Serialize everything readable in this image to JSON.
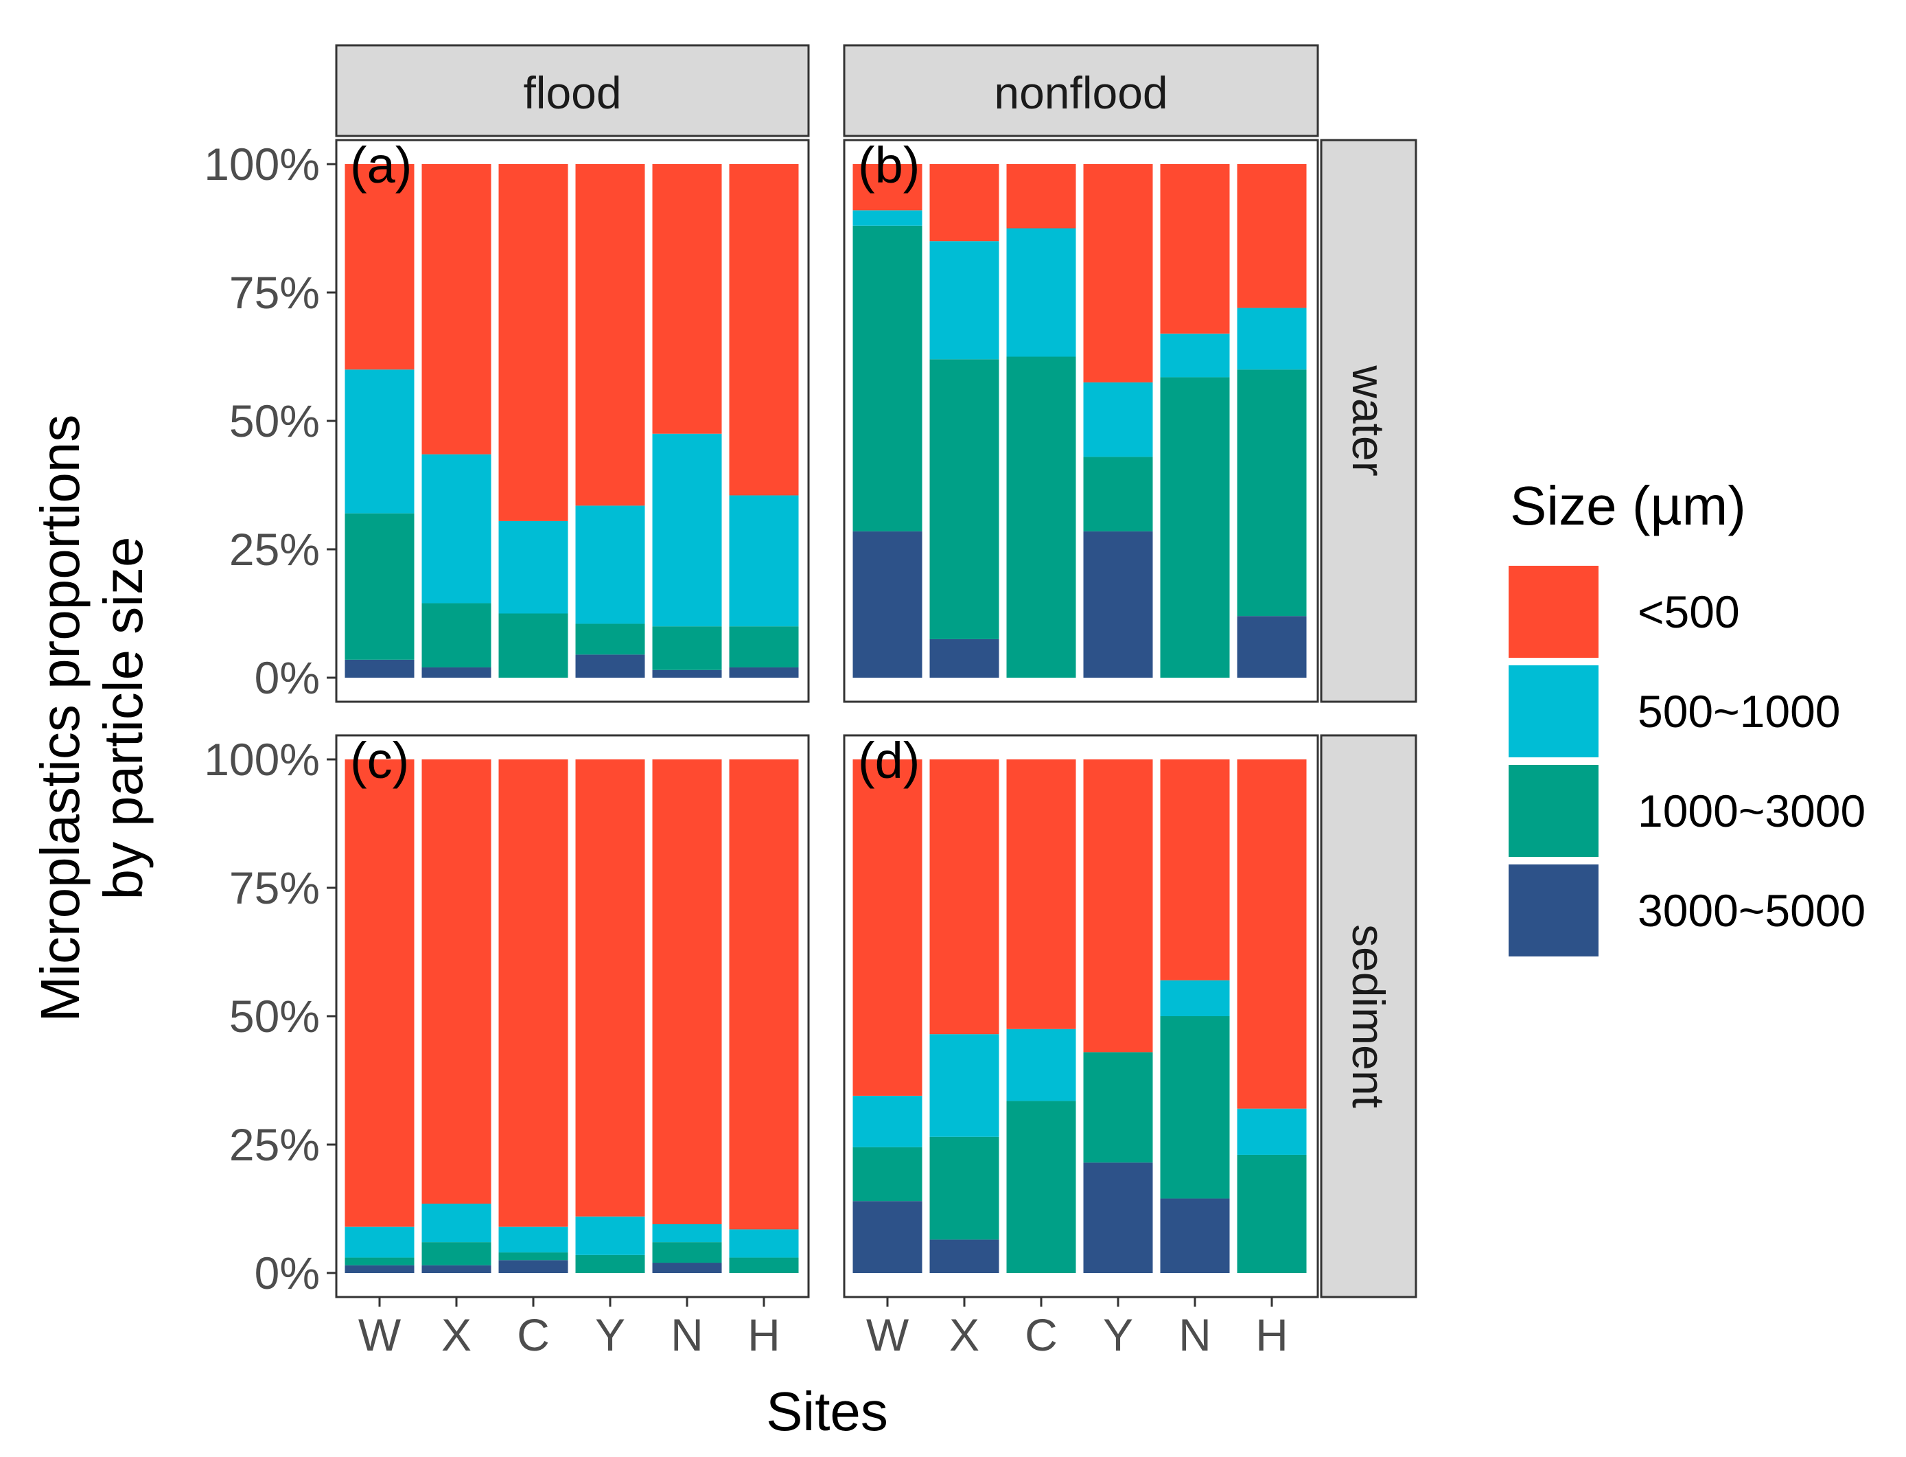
{
  "chart_data": {
    "type": "bar",
    "stacked": true,
    "layout": "2x2 facet grid",
    "col_facets": [
      "flood",
      "nonflood"
    ],
    "row_facets": [
      "water",
      "sediment"
    ],
    "categories": [
      "W",
      "X",
      "C",
      "Y",
      "N",
      "H"
    ],
    "xlabel": "Sites",
    "ylabel_lines": [
      "Microplastics proportions",
      "by particle size"
    ],
    "ylim": [
      0,
      100
    ],
    "yticks": [
      0,
      25,
      50,
      75,
      100
    ],
    "ytick_labels": [
      "0%",
      "25%",
      "50%",
      "75%",
      "100%"
    ],
    "legend": {
      "title": "Size (µm)",
      "position": "right",
      "entries": [
        {
          "label": "<500",
          "color": "#FF4A30"
        },
        {
          "label": "500~1000",
          "color": "#00BDD5"
        },
        {
          "label": "1000~3000",
          "color": "#00A087"
        },
        {
          "label": "3000~5000",
          "color": "#2D5289"
        }
      ]
    },
    "stack_order_bottom_to_top": [
      "3000~5000",
      "1000~3000",
      "500~1000",
      "<500"
    ],
    "panels": [
      {
        "tag": "(a)",
        "col": "flood",
        "row": "water",
        "series": [
          {
            "name": "3000~5000",
            "values": [
              3.5,
              2.0,
              0.0,
              4.5,
              1.5,
              2.0
            ]
          },
          {
            "name": "1000~3000",
            "values": [
              28.5,
              12.5,
              12.5,
              6.0,
              8.5,
              8.0
            ]
          },
          {
            "name": "500~1000",
            "values": [
              28.0,
              29.0,
              18.0,
              23.0,
              37.5,
              25.5
            ]
          },
          {
            "name": "<500",
            "values": [
              40.0,
              56.5,
              69.5,
              66.5,
              52.5,
              64.5
            ]
          }
        ]
      },
      {
        "tag": "(b)",
        "col": "nonflood",
        "row": "water",
        "series": [
          {
            "name": "3000~5000",
            "values": [
              28.5,
              7.5,
              0.0,
              28.5,
              0.0,
              12.0
            ]
          },
          {
            "name": "1000~3000",
            "values": [
              59.5,
              54.5,
              62.5,
              14.5,
              58.5,
              48.0
            ]
          },
          {
            "name": "500~1000",
            "values": [
              3.0,
              23.0,
              25.0,
              14.5,
              8.5,
              12.0
            ]
          },
          {
            "name": "<500",
            "values": [
              9.0,
              15.0,
              12.5,
              42.5,
              33.0,
              28.0
            ]
          }
        ]
      },
      {
        "tag": "(c)",
        "col": "flood",
        "row": "sediment",
        "series": [
          {
            "name": "3000~5000",
            "values": [
              1.5,
              1.5,
              2.5,
              0.0,
              2.0,
              0.0
            ]
          },
          {
            "name": "1000~3000",
            "values": [
              1.5,
              4.5,
              1.5,
              3.5,
              4.0,
              3.0
            ]
          },
          {
            "name": "500~1000",
            "values": [
              6.0,
              7.5,
              5.0,
              7.5,
              3.5,
              5.5
            ]
          },
          {
            "name": "<500",
            "values": [
              91.0,
              86.5,
              91.0,
              89.0,
              90.5,
              91.5
            ]
          }
        ]
      },
      {
        "tag": "(d)",
        "col": "nonflood",
        "row": "sediment",
        "series": [
          {
            "name": "3000~5000",
            "values": [
              14.0,
              6.5,
              0.0,
              21.5,
              14.5,
              0.0
            ]
          },
          {
            "name": "1000~3000",
            "values": [
              10.5,
              20.0,
              33.5,
              21.5,
              35.5,
              23.0
            ]
          },
          {
            "name": "500~1000",
            "values": [
              10.0,
              20.0,
              14.0,
              0.0,
              7.0,
              9.0
            ]
          },
          {
            "name": "<500",
            "values": [
              65.5,
              53.5,
              52.5,
              57.0,
              43.0,
              68.0
            ]
          }
        ]
      }
    ]
  }
}
